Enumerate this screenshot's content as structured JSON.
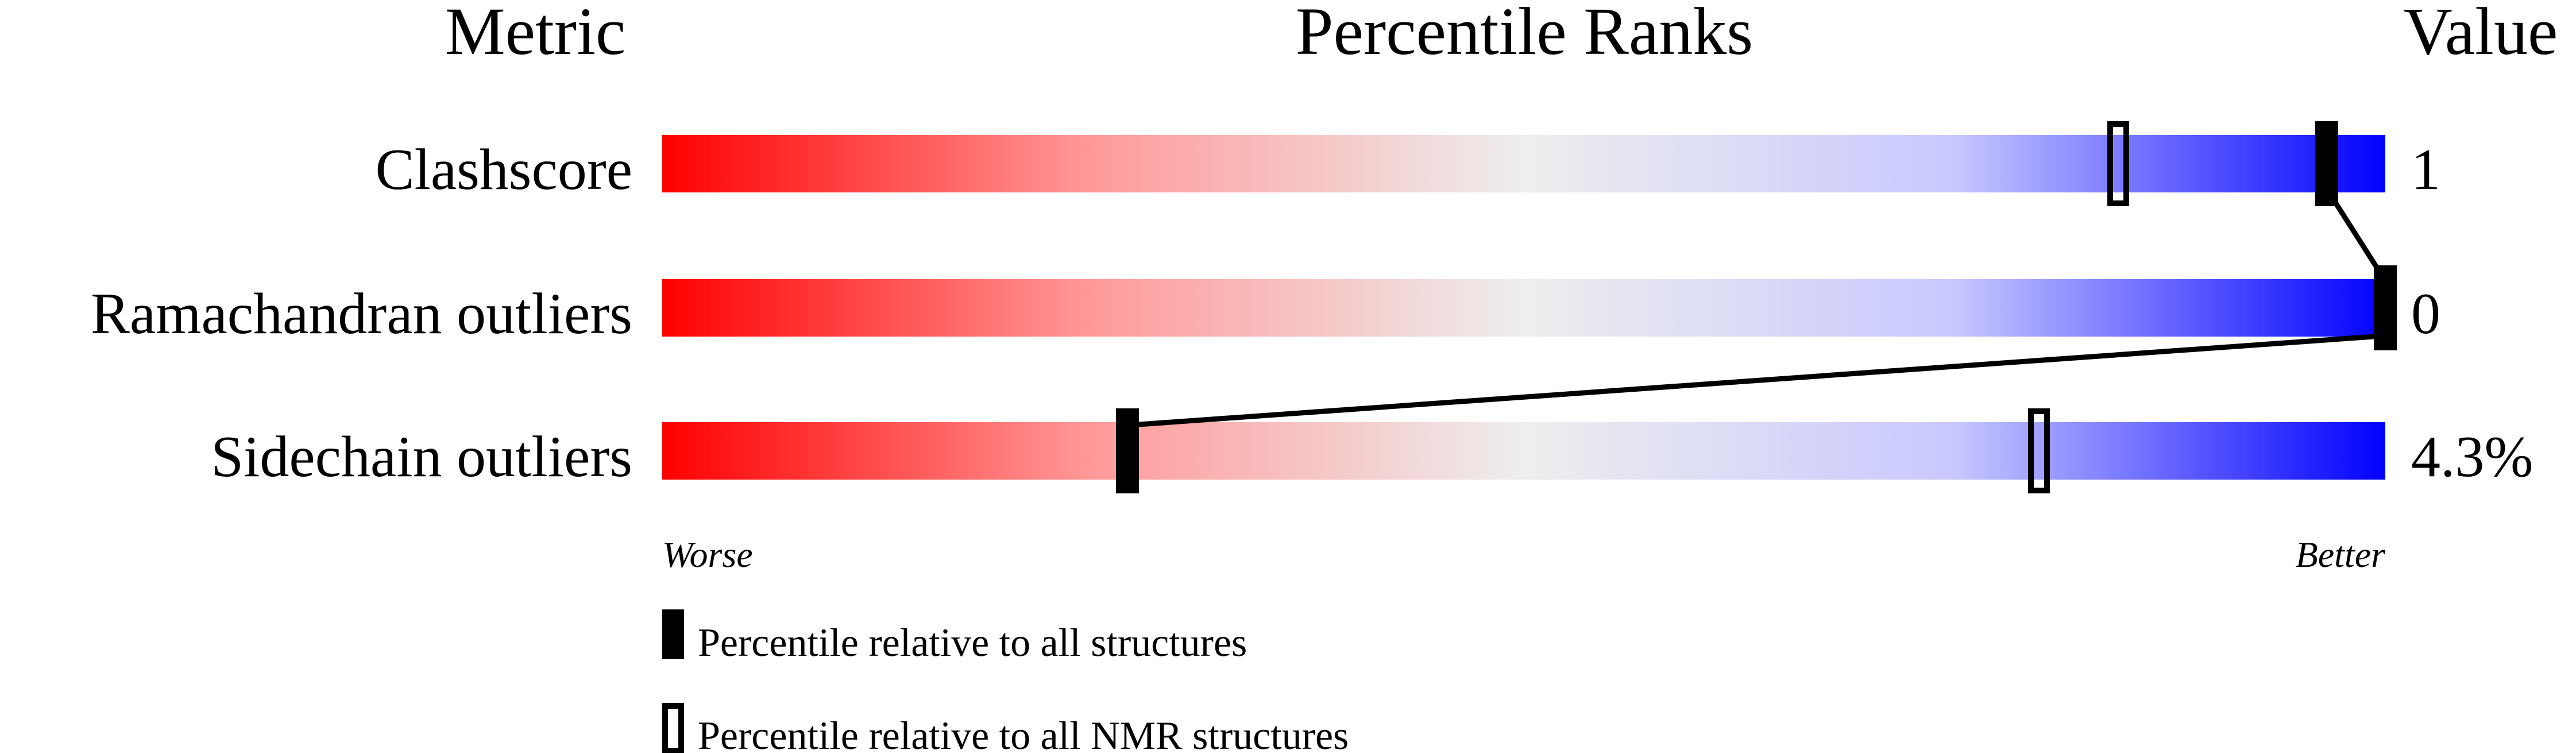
{
  "chart_data": {
    "type": "percentile-ranks",
    "headers": {
      "metric": "Metric",
      "percentile": "Percentile Ranks",
      "value": "Value"
    },
    "xlim": [
      0,
      100
    ],
    "axis_labels": {
      "left": "Worse",
      "right": "Better"
    },
    "gradient_colors": [
      "#ff0000",
      "#eeeeee",
      "#0000ff"
    ],
    "rows": [
      {
        "metric": "Clashscore",
        "value": "1",
        "percentile_all": 96.6,
        "percentile_nmr": 84.5
      },
      {
        "metric": "Ramachandran outliers",
        "value": "0",
        "percentile_all": 100,
        "percentile_nmr": null
      },
      {
        "metric": "Sidechain outliers",
        "value": "4.3%",
        "percentile_all": 27.0,
        "percentile_nmr": 79.9
      }
    ],
    "legend": [
      {
        "marker": "filled",
        "label": "Percentile relative to all structures"
      },
      {
        "marker": "hollow",
        "label": "Percentile relative to all NMR structures"
      }
    ]
  }
}
